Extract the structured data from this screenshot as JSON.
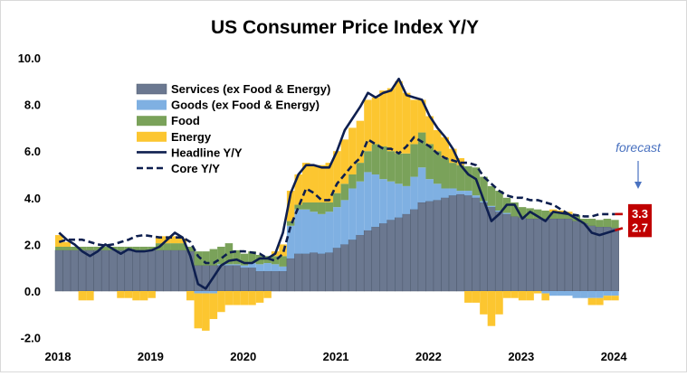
{
  "chart_data": {
    "type": "bar",
    "stacked": true,
    "title": "US Consumer Price Index Y/Y",
    "xlabel": "",
    "ylabel": "",
    "ylim": [
      -2,
      10
    ],
    "yticks": [
      "-2.0",
      "0.0",
      "2.0",
      "4.0",
      "6.0",
      "8.0",
      "10.0"
    ],
    "yticks_values": [
      -2,
      0,
      2,
      4,
      6,
      8,
      10
    ],
    "xticks": [
      "2018",
      "2019",
      "2020",
      "2021",
      "2022",
      "2023",
      "2024"
    ],
    "grid": false,
    "legend_position": "top-left",
    "x": [
      "2018-01",
      "2018-02",
      "2018-03",
      "2018-04",
      "2018-05",
      "2018-06",
      "2018-07",
      "2018-08",
      "2018-09",
      "2018-10",
      "2018-11",
      "2018-12",
      "2019-01",
      "2019-02",
      "2019-03",
      "2019-04",
      "2019-05",
      "2019-06",
      "2019-07",
      "2019-08",
      "2019-09",
      "2019-10",
      "2019-11",
      "2019-12",
      "2020-01",
      "2020-02",
      "2020-03",
      "2020-04",
      "2020-05",
      "2020-06",
      "2020-07",
      "2020-08",
      "2020-09",
      "2020-10",
      "2020-11",
      "2020-12",
      "2021-01",
      "2021-02",
      "2021-03",
      "2021-04",
      "2021-05",
      "2021-06",
      "2021-07",
      "2021-08",
      "2021-09",
      "2021-10",
      "2021-11",
      "2021-12",
      "2022-01",
      "2022-02",
      "2022-03",
      "2022-04",
      "2022-05",
      "2022-06",
      "2022-07",
      "2022-08",
      "2022-09",
      "2022-10",
      "2022-11",
      "2022-12",
      "2023-01",
      "2023-02",
      "2023-03",
      "2023-04",
      "2023-05",
      "2023-06",
      "2023-07",
      "2023-08",
      "2023-09",
      "2023-10",
      "2023-11",
      "2023-12",
      "2024-01"
    ],
    "series": [
      {
        "name": "Services (ex Food & Energy)",
        "kind": "bar",
        "color": "#6b7890",
        "values": [
          1.75,
          1.75,
          1.75,
          1.75,
          1.75,
          1.75,
          1.75,
          1.75,
          1.75,
          1.75,
          1.75,
          1.75,
          1.75,
          1.75,
          1.75,
          1.75,
          1.75,
          1.7,
          1.1,
          1.1,
          1.1,
          1.1,
          1.1,
          1.1,
          1.0,
          1.0,
          0.85,
          0.85,
          0.85,
          0.85,
          1.4,
          1.6,
          1.6,
          1.65,
          1.6,
          1.65,
          1.85,
          2.0,
          2.2,
          2.4,
          2.6,
          2.75,
          2.9,
          3.05,
          3.15,
          3.3,
          3.5,
          3.8,
          3.85,
          3.9,
          4.0,
          4.1,
          4.15,
          4.1,
          4.0,
          3.8,
          3.6,
          3.4,
          3.3,
          3.2,
          3.15,
          3.1,
          3.1,
          3.1,
          3.1,
          3.1,
          3.1,
          3.0,
          2.9,
          2.8,
          2.75,
          2.75,
          2.7
        ]
      },
      {
        "name": "Goods (ex Food & Energy)",
        "kind": "bar",
        "color": "#7fb0e2",
        "values": [
          0,
          0,
          0,
          0,
          0,
          0,
          0,
          0,
          0,
          0,
          0,
          0,
          0,
          0,
          0,
          0,
          0,
          0,
          -0.1,
          -0.1,
          -0.1,
          0.05,
          0.05,
          0.05,
          0.1,
          0.2,
          0.3,
          0.35,
          0.3,
          0.2,
          1.4,
          1.9,
          1.9,
          1.75,
          1.7,
          1.75,
          1.75,
          1.9,
          2.2,
          2.3,
          2.5,
          2.25,
          1.9,
          1.65,
          1.45,
          1.2,
          1.4,
          1.5,
          0.95,
          0.7,
          0.4,
          0.3,
          0.15,
          0.2,
          0.1,
          0.05,
          0.05,
          0.05,
          0.05,
          0,
          0,
          0,
          0,
          -0.1,
          -0.2,
          -0.2,
          -0.2,
          -0.3,
          -0.3,
          -0.3,
          -0.3,
          -0.2,
          -0.2
        ]
      },
      {
        "name": "Food",
        "kind": "bar",
        "color": "#7aa25a",
        "values": [
          0.15,
          0.15,
          0.15,
          0.15,
          0.15,
          0.15,
          0.15,
          0.15,
          0.15,
          0.15,
          0.15,
          0.15,
          0.15,
          0.3,
          0.3,
          0.3,
          0.3,
          0.2,
          0.6,
          0.6,
          0.7,
          0.75,
          0.9,
          0.6,
          0.5,
          0.5,
          0.4,
          0.3,
          0.35,
          0.45,
          0.2,
          0.2,
          0.3,
          0.4,
          0.5,
          0.4,
          0.6,
          0.7,
          0.6,
          0.8,
          0.9,
          1.3,
          1.4,
          1.3,
          1.3,
          1.4,
          1.4,
          1.5,
          1.5,
          1.4,
          1.3,
          1.1,
          1.1,
          1.05,
          1.2,
          1.05,
          0.85,
          0.85,
          0.65,
          0.6,
          0.45,
          0.45,
          0.4,
          0.35,
          0.3,
          0.25,
          0.2,
          0.25,
          0.2,
          0.3,
          0.3,
          0.35,
          0.35
        ]
      },
      {
        "name": "Energy",
        "kind": "bar",
        "color": "#fcc630",
        "values": [
          0.5,
          0.2,
          0,
          -0.4,
          -0.4,
          0,
          0,
          0,
          -0.3,
          -0.3,
          -0.4,
          -0.4,
          -0.3,
          0.3,
          0.3,
          0.3,
          0.2,
          -0.4,
          -1.5,
          -1.6,
          -1.1,
          -0.9,
          -0.6,
          -0.6,
          -0.6,
          -0.6,
          -0.5,
          -0.3,
          0.2,
          0.5,
          1.3,
          1.3,
          1.7,
          1.6,
          1.6,
          1.7,
          1.8,
          1.9,
          2.0,
          1.8,
          2.2,
          2.0,
          2.4,
          2.7,
          3.1,
          2.6,
          1.9,
          1.4,
          1.2,
          0.9,
          0.9,
          0.6,
          0.3,
          -0.5,
          -0.5,
          -1.0,
          -1.5,
          -1.0,
          -0.3,
          -0.3,
          -0.4,
          -0.4,
          -0.1,
          -0.3,
          0.1,
          0.1,
          0.1,
          0,
          0,
          -0.3,
          -0.3,
          -0.2,
          -0.2
        ]
      },
      {
        "name": "Headline Y/Y",
        "kind": "line",
        "style": "solid",
        "color": "#0e1f4f",
        "values": [
          2.5,
          2.2,
          2.0,
          1.7,
          1.5,
          1.7,
          2.0,
          1.8,
          1.6,
          1.8,
          1.7,
          1.7,
          1.75,
          1.9,
          2.2,
          2.5,
          2.3,
          1.5,
          0.3,
          0.1,
          0.6,
          1.1,
          1.3,
          1.35,
          1.2,
          1.2,
          1.4,
          1.4,
          1.6,
          2.5,
          4.2,
          5.0,
          5.4,
          5.4,
          5.3,
          5.3,
          6.0,
          6.9,
          7.4,
          7.9,
          8.5,
          8.3,
          8.5,
          8.6,
          9.1,
          8.4,
          8.3,
          8.2,
          7.5,
          7.0,
          6.6,
          6.1,
          5.4,
          5.0,
          4.8,
          3.9,
          3.0,
          3.3,
          3.7,
          3.7,
          3.1,
          3.4,
          3.2,
          3.0,
          3.4,
          3.35,
          3.3,
          3.1,
          2.9,
          2.5,
          2.4,
          2.5,
          2.6
        ],
        "forecast": {
          "x": "2024-02",
          "value": 2.7,
          "label": "2.7"
        }
      },
      {
        "name": "Core Y/Y",
        "kind": "line",
        "style": "dashed",
        "color": "#0e1f4f",
        "values": [
          2.1,
          2.2,
          2.2,
          2.2,
          2.1,
          2.0,
          1.95,
          2.0,
          2.1,
          2.2,
          2.35,
          2.4,
          2.35,
          2.3,
          2.3,
          2.3,
          2.3,
          2.1,
          1.5,
          1.2,
          1.2,
          1.4,
          1.65,
          1.7,
          1.7,
          1.65,
          1.6,
          1.4,
          1.3,
          1.6,
          2.8,
          3.6,
          4.4,
          4.2,
          3.9,
          3.9,
          4.6,
          5.0,
          5.4,
          5.7,
          6.5,
          6.3,
          6.1,
          6.1,
          5.9,
          6.2,
          6.6,
          6.4,
          6.2,
          5.9,
          5.7,
          5.6,
          5.5,
          5.5,
          5.4,
          4.9,
          4.6,
          4.3,
          4.1,
          4.0,
          4.0,
          3.9,
          3.9,
          3.8,
          3.7,
          3.5,
          3.3,
          3.25,
          3.2,
          3.2,
          3.3,
          3.3,
          3.3
        ],
        "forecast": {
          "x": "2024-02",
          "value": 3.3,
          "label": "3.3"
        }
      }
    ],
    "annotations": [
      {
        "text": "forecast",
        "color": "#4a72c0"
      }
    ],
    "forecast_color": "#c00000"
  }
}
